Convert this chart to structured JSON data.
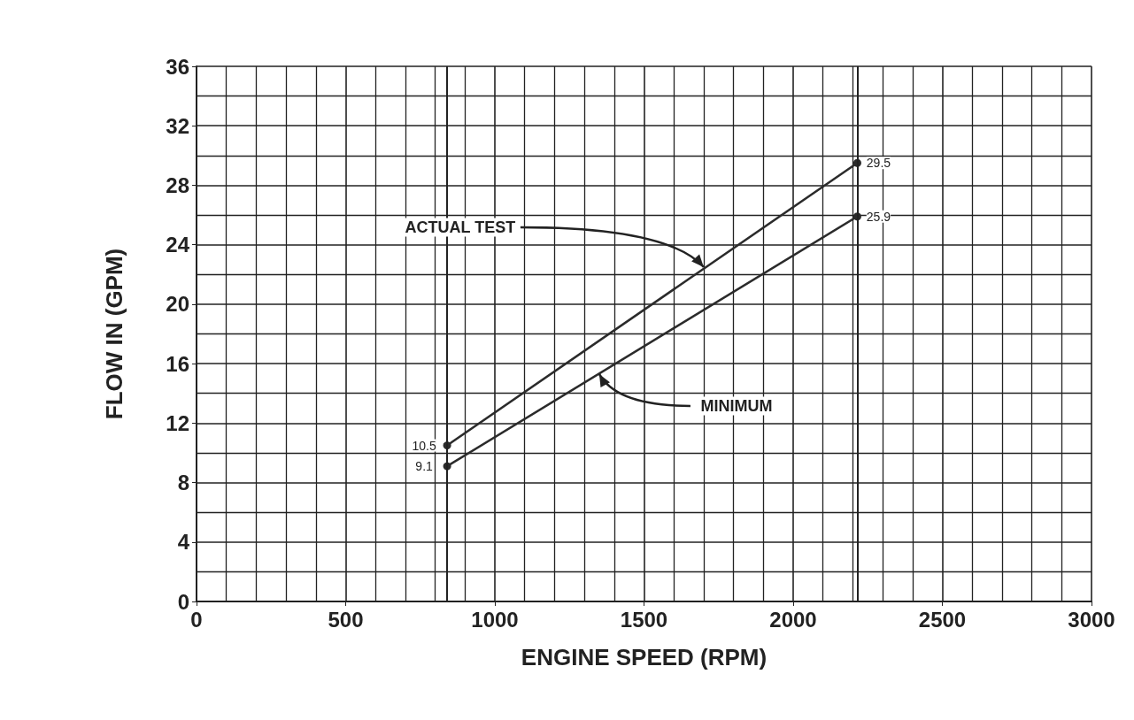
{
  "chart_data": {
    "type": "line",
    "xlabel": "ENGINE SPEED (RPM)",
    "ylabel": "FLOW IN (GPM)",
    "x": [
      840,
      2215
    ],
    "series": [
      {
        "color": "#2b2b2b",
        "values": [
          10.5,
          29.5
        ]
      },
      {
        "color": "#2b2b2b",
        "values": [
          9.1,
          25.9
        ]
      }
    ],
    "xlim": [
      0,
      3000
    ],
    "xticks": [
      0,
      500,
      1000,
      1500,
      2000,
      2500,
      3000
    ],
    "ylim": [
      0,
      36
    ],
    "yticks": [
      0,
      4,
      8,
      12,
      16,
      20,
      24,
      28,
      32,
      36
    ],
    "grid": true,
    "marker": "circle",
    "line_style": "solid",
    "data_labels": true,
    "ref_lines": [
      {
        "axis": "x",
        "value": 840
      },
      {
        "axis": "x",
        "value": 2215
      }
    ],
    "annotations": [
      {
        "text": "ACTUAL TEST",
        "x": 1700,
        "y": 22.5
      },
      {
        "text": "MINIMUM",
        "x": 1350,
        "y": 15.3
      }
    ]
  }
}
